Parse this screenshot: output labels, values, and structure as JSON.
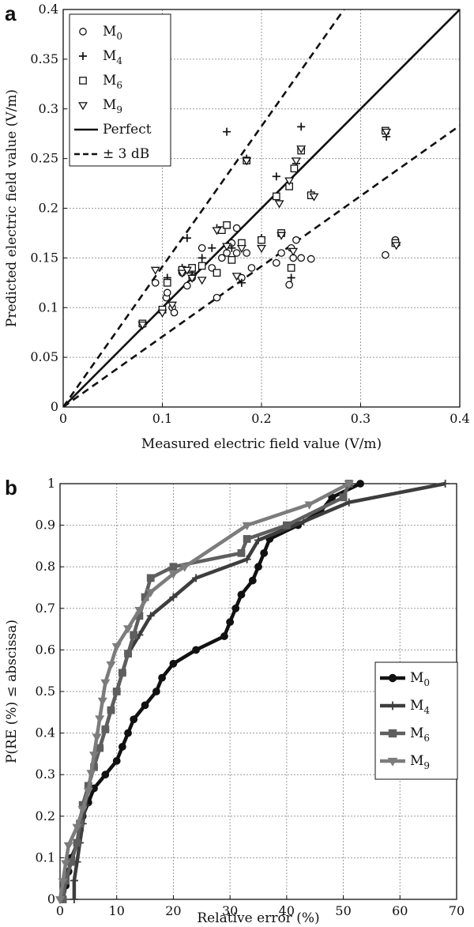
{
  "panels": {
    "a": "a",
    "b": "b"
  },
  "chart_data": [
    {
      "type": "scatter",
      "xlabel": "Measured electric field value (V/m)",
      "ylabel": "Predicted electric field value (V/m)",
      "xlim": [
        0,
        0.4
      ],
      "ylim": [
        0,
        0.4
      ],
      "xticks": [
        "0",
        "0.1",
        "0.2",
        "0.3",
        "0.4"
      ],
      "yticks": [
        "0",
        "0.05",
        "0.1",
        "0.15",
        "0.2",
        "0.25",
        "0.3",
        "0.35",
        "0.4"
      ],
      "grid": true,
      "legend_position": "top-left",
      "series": [
        {
          "name": "M",
          "sub": "0",
          "marker": "circle",
          "points": [
            [
              0.08,
              0.083
            ],
            [
              0.093,
              0.125
            ],
            [
              0.1,
              0.097
            ],
            [
              0.104,
              0.11
            ],
            [
              0.105,
              0.115
            ],
            [
              0.11,
              0.1
            ],
            [
              0.112,
              0.095
            ],
            [
              0.12,
              0.135
            ],
            [
              0.125,
              0.122
            ],
            [
              0.13,
              0.13
            ],
            [
              0.14,
              0.16
            ],
            [
              0.15,
              0.14
            ],
            [
              0.155,
              0.11
            ],
            [
              0.16,
              0.15
            ],
            [
              0.165,
              0.155
            ],
            [
              0.17,
              0.165
            ],
            [
              0.175,
              0.18
            ],
            [
              0.175,
              0.155
            ],
            [
              0.18,
              0.13
            ],
            [
              0.185,
              0.155
            ],
            [
              0.19,
              0.14
            ],
            [
              0.215,
              0.145
            ],
            [
              0.22,
              0.155
            ],
            [
              0.228,
              0.123
            ],
            [
              0.23,
              0.16
            ],
            [
              0.232,
              0.15
            ],
            [
              0.235,
              0.168
            ],
            [
              0.24,
              0.15
            ],
            [
              0.25,
              0.149
            ],
            [
              0.325,
              0.153
            ],
            [
              0.335,
              0.168
            ]
          ]
        },
        {
          "name": "M",
          "sub": "4",
          "marker": "plus",
          "points": [
            [
              0.08,
              0.082
            ],
            [
              0.1,
              0.095
            ],
            [
              0.105,
              0.13
            ],
            [
              0.12,
              0.14
            ],
            [
              0.125,
              0.17
            ],
            [
              0.13,
              0.135
            ],
            [
              0.14,
              0.15
            ],
            [
              0.15,
              0.16
            ],
            [
              0.155,
              0.18
            ],
            [
              0.165,
              0.277
            ],
            [
              0.17,
              0.16
            ],
            [
              0.18,
              0.125
            ],
            [
              0.185,
              0.25
            ],
            [
              0.2,
              0.17
            ],
            [
              0.215,
              0.232
            ],
            [
              0.22,
              0.175
            ],
            [
              0.23,
              0.13
            ],
            [
              0.235,
              0.245
            ],
            [
              0.24,
              0.282
            ],
            [
              0.25,
              0.215
            ],
            [
              0.326,
              0.272
            ],
            [
              0.336,
              0.163
            ]
          ]
        },
        {
          "name": "M",
          "sub": "6",
          "marker": "square",
          "points": [
            [
              0.08,
              0.084
            ],
            [
              0.1,
              0.098
            ],
            [
              0.105,
              0.125
            ],
            [
              0.12,
              0.138
            ],
            [
              0.13,
              0.14
            ],
            [
              0.14,
              0.142
            ],
            [
              0.155,
              0.135
            ],
            [
              0.16,
              0.178
            ],
            [
              0.165,
              0.183
            ],
            [
              0.17,
              0.148
            ],
            [
              0.18,
              0.165
            ],
            [
              0.185,
              0.248
            ],
            [
              0.2,
              0.168
            ],
            [
              0.215,
              0.212
            ],
            [
              0.22,
              0.175
            ],
            [
              0.228,
              0.222
            ],
            [
              0.23,
              0.14
            ],
            [
              0.233,
              0.24
            ],
            [
              0.24,
              0.258
            ],
            [
              0.25,
              0.213
            ],
            [
              0.325,
              0.278
            ],
            [
              0.335,
              0.165
            ]
          ]
        },
        {
          "name": "M",
          "sub": "9",
          "marker": "triangle",
          "points": [
            [
              0.08,
              0.083
            ],
            [
              0.093,
              0.138
            ],
            [
              0.1,
              0.095
            ],
            [
              0.11,
              0.103
            ],
            [
              0.12,
              0.135
            ],
            [
              0.125,
              0.138
            ],
            [
              0.13,
              0.13
            ],
            [
              0.14,
              0.128
            ],
            [
              0.155,
              0.178
            ],
            [
              0.165,
              0.162
            ],
            [
              0.175,
              0.132
            ],
            [
              0.18,
              0.16
            ],
            [
              0.185,
              0.248
            ],
            [
              0.2,
              0.16
            ],
            [
              0.218,
              0.205
            ],
            [
              0.22,
              0.173
            ],
            [
              0.228,
              0.228
            ],
            [
              0.232,
              0.157
            ],
            [
              0.235,
              0.248
            ],
            [
              0.24,
              0.26
            ],
            [
              0.253,
              0.212
            ],
            [
              0.326,
              0.277
            ],
            [
              0.336,
              0.163
            ]
          ]
        },
        {
          "name": "Perfect",
          "line": "solid",
          "slope": 1
        },
        {
          "name": "± 3 dB",
          "line": "dashed",
          "slopes": [
            1.4125,
            0.7079
          ]
        }
      ]
    },
    {
      "type": "line",
      "xlabel": "Relative error (%)",
      "ylabel": "P(RE (%) ≤ abscissa)",
      "xlim": [
        0,
        70
      ],
      "ylim": [
        0,
        1
      ],
      "xticks": [
        "0",
        "10",
        "20",
        "30",
        "40",
        "50",
        "60",
        "70"
      ],
      "yticks": [
        "0",
        "0.1",
        "0.2",
        "0.3",
        "0.4",
        "0.5",
        "0.6",
        "0.7",
        "0.8",
        "0.9",
        "1"
      ],
      "grid": true,
      "legend_position": "center-right",
      "series": [
        {
          "name": "M",
          "sub": "0",
          "color": "#111111",
          "marker": "circle",
          "points": [
            [
              0.5,
              0
            ],
            [
              1,
              0.033
            ],
            [
              1.5,
              0.067
            ],
            [
              2,
              0.1
            ],
            [
              3,
              0.133
            ],
            [
              3.5,
              0.167
            ],
            [
              4,
              0.2
            ],
            [
              5,
              0.233
            ],
            [
              6,
              0.267
            ],
            [
              8,
              0.3
            ],
            [
              10,
              0.333
            ],
            [
              11,
              0.367
            ],
            [
              12,
              0.4
            ],
            [
              13,
              0.433
            ],
            [
              15,
              0.467
            ],
            [
              17,
              0.5
            ],
            [
              18,
              0.533
            ],
            [
              20,
              0.567
            ],
            [
              24,
              0.6
            ],
            [
              29,
              0.633
            ],
            [
              30,
              0.667
            ],
            [
              31,
              0.7
            ],
            [
              32,
              0.733
            ],
            [
              34,
              0.767
            ],
            [
              35,
              0.8
            ],
            [
              36,
              0.833
            ],
            [
              37,
              0.867
            ],
            [
              42,
              0.9
            ],
            [
              46,
              0.933
            ],
            [
              48,
              0.967
            ],
            [
              53,
              1.0
            ]
          ]
        },
        {
          "name": "M",
          "sub": "4",
          "color": "#3d3d3d",
          "marker": "plus",
          "points": [
            [
              2.5,
              0
            ],
            [
              2.5,
              0.045
            ],
            [
              3,
              0.09
            ],
            [
              3.5,
              0.136
            ],
            [
              4,
              0.182
            ],
            [
              4.5,
              0.227
            ],
            [
              5,
              0.273
            ],
            [
              6,
              0.318
            ],
            [
              7,
              0.364
            ],
            [
              8,
              0.409
            ],
            [
              9,
              0.455
            ],
            [
              10,
              0.5
            ],
            [
              11,
              0.545
            ],
            [
              12,
              0.591
            ],
            [
              14,
              0.636
            ],
            [
              16,
              0.682
            ],
            [
              20,
              0.727
            ],
            [
              24,
              0.773
            ],
            [
              33,
              0.818
            ],
            [
              35,
              0.864
            ],
            [
              43,
              0.909
            ],
            [
              51,
              0.955
            ],
            [
              68,
              1.0
            ]
          ]
        },
        {
          "name": "M",
          "sub": "6",
          "color": "#5e5e5e",
          "marker": "square",
          "points": [
            [
              0.5,
              0
            ],
            [
              1,
              0.045
            ],
            [
              2,
              0.09
            ],
            [
              3,
              0.136
            ],
            [
              3.5,
              0.182
            ],
            [
              4,
              0.227
            ],
            [
              5,
              0.273
            ],
            [
              6,
              0.318
            ],
            [
              7,
              0.364
            ],
            [
              8,
              0.409
            ],
            [
              9,
              0.455
            ],
            [
              10,
              0.5
            ],
            [
              11,
              0.545
            ],
            [
              12,
              0.591
            ],
            [
              13,
              0.636
            ],
            [
              14,
              0.682
            ],
            [
              15,
              0.727
            ],
            [
              16,
              0.773
            ],
            [
              20,
              0.8
            ],
            [
              32,
              0.833
            ],
            [
              33,
              0.867
            ],
            [
              40,
              0.9
            ],
            [
              50,
              0.967
            ],
            [
              51,
              1.0
            ]
          ]
        },
        {
          "name": "M",
          "sub": "9",
          "color": "#7c7c7c",
          "marker": "triangle",
          "points": [
            [
              0,
              0
            ],
            [
              0.5,
              0.043
            ],
            [
              1,
              0.087
            ],
            [
              1.5,
              0.13
            ],
            [
              3,
              0.174
            ],
            [
              4,
              0.217
            ],
            [
              5,
              0.261
            ],
            [
              5.5,
              0.304
            ],
            [
              6,
              0.348
            ],
            [
              6.5,
              0.391
            ],
            [
              7,
              0.435
            ],
            [
              7.5,
              0.478
            ],
            [
              8,
              0.522
            ],
            [
              9,
              0.565
            ],
            [
              10,
              0.609
            ],
            [
              12,
              0.652
            ],
            [
              14,
              0.696
            ],
            [
              16,
              0.739
            ],
            [
              20,
              0.783
            ],
            [
              22,
              0.8
            ],
            [
              33,
              0.9
            ],
            [
              44,
              0.95
            ],
            [
              51,
              1.0
            ]
          ]
        }
      ]
    }
  ]
}
